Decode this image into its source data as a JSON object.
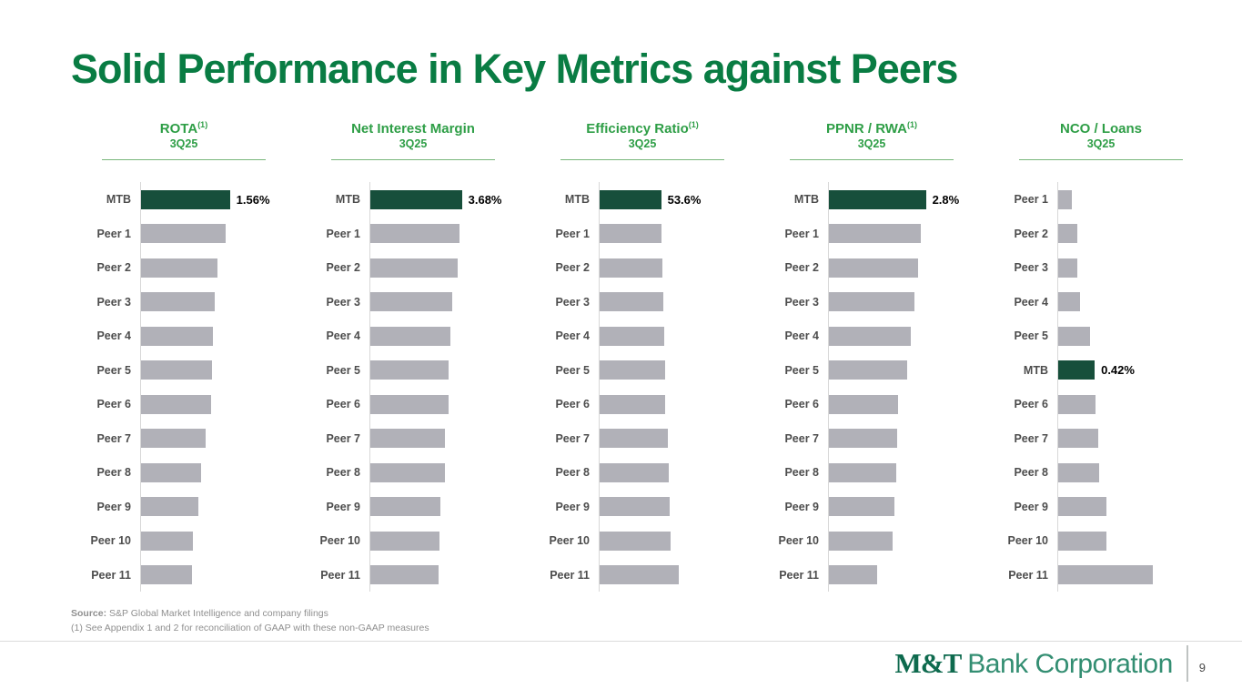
{
  "title": "Solid Performance in Key Metrics against Peers",
  "footnotes": {
    "source_label": "Source:",
    "source_text": "S&P Global Market Intelligence and company filings",
    "gaap_note": "(1) See Appendix 1 and 2 for reconciliation of GAAP with these non-GAAP measures"
  },
  "footer": {
    "logo_bold": "M&T",
    "logo_text": "Bank Corporation",
    "page_number": "9"
  },
  "colors": {
    "title_green": "#097C43",
    "header_green": "#2E9E46",
    "mtb_bar_green": "#174F3B",
    "peer_bar_gray": "#B1B1B8"
  },
  "chart_data": [
    {
      "type": "bar",
      "orientation": "horizontal",
      "title": "ROTA",
      "title_note": "(1)",
      "subtitle": "3Q25",
      "unit": "%",
      "xlim": [
        0,
        2.7
      ],
      "grid": false,
      "legend": false,
      "bars": [
        {
          "label": "MTB",
          "value": 1.56,
          "value_label": "1.56%",
          "highlight": true
        },
        {
          "label": "Peer 1",
          "value": 1.48
        },
        {
          "label": "Peer 2",
          "value": 1.34
        },
        {
          "label": "Peer 3",
          "value": 1.29
        },
        {
          "label": "Peer 4",
          "value": 1.26
        },
        {
          "label": "Peer 5",
          "value": 1.25
        },
        {
          "label": "Peer 6",
          "value": 1.23
        },
        {
          "label": "Peer 7",
          "value": 1.14
        },
        {
          "label": "Peer 8",
          "value": 1.05
        },
        {
          "label": "Peer 9",
          "value": 1.0
        },
        {
          "label": "Peer 10",
          "value": 0.91
        },
        {
          "label": "Peer 11",
          "value": 0.89
        }
      ]
    },
    {
      "type": "bar",
      "orientation": "horizontal",
      "title": "Net Interest Margin",
      "title_note": "",
      "subtitle": "3Q25",
      "unit": "%",
      "xlim": [
        0,
        6.18
      ],
      "grid": false,
      "legend": false,
      "bars": [
        {
          "label": "MTB",
          "value": 3.68,
          "value_label": "3.68%",
          "highlight": true
        },
        {
          "label": "Peer 1",
          "value": 3.57
        },
        {
          "label": "Peer 2",
          "value": 3.5
        },
        {
          "label": "Peer 3",
          "value": 3.29
        },
        {
          "label": "Peer 4",
          "value": 3.21
        },
        {
          "label": "Peer 5",
          "value": 3.14
        },
        {
          "label": "Peer 6",
          "value": 3.14
        },
        {
          "label": "Peer 7",
          "value": 3.0
        },
        {
          "label": "Peer 8",
          "value": 3.0
        },
        {
          "label": "Peer 9",
          "value": 2.82
        },
        {
          "label": "Peer 10",
          "value": 2.79
        },
        {
          "label": "Peer 11",
          "value": 2.75
        }
      ]
    },
    {
      "type": "bar",
      "orientation": "horizontal",
      "title": "Efficiency Ratio",
      "title_note": "(1)",
      "subtitle": "3Q25",
      "unit": "%",
      "xlim": [
        0,
        134
      ],
      "grid": false,
      "legend": false,
      "bars": [
        {
          "label": "MTB",
          "value": 53.6,
          "value_label": "53.6%",
          "highlight": true
        },
        {
          "label": "Peer 1",
          "value": 53.9
        },
        {
          "label": "Peer 2",
          "value": 54.4
        },
        {
          "label": "Peer 3",
          "value": 55.7
        },
        {
          "label": "Peer 4",
          "value": 56.0
        },
        {
          "label": "Peer 5",
          "value": 56.7
        },
        {
          "label": "Peer 6",
          "value": 56.9
        },
        {
          "label": "Peer 7",
          "value": 59.8
        },
        {
          "label": "Peer 8",
          "value": 60.3
        },
        {
          "label": "Peer 9",
          "value": 60.9
        },
        {
          "label": "Peer 10",
          "value": 61.9
        },
        {
          "label": "Peer 11",
          "value": 69.1
        }
      ]
    },
    {
      "type": "bar",
      "orientation": "horizontal",
      "title": "PPNR / RWA",
      "title_note": "(1)",
      "subtitle": "3Q25",
      "unit": "%",
      "xlim": [
        0,
        4.44
      ],
      "grid": false,
      "legend": false,
      "bars": [
        {
          "label": "MTB",
          "value": 2.8,
          "value_label": "2.8%",
          "highlight": true
        },
        {
          "label": "Peer 1",
          "value": 2.65
        },
        {
          "label": "Peer 2",
          "value": 2.57
        },
        {
          "label": "Peer 3",
          "value": 2.47
        },
        {
          "label": "Peer 4",
          "value": 2.37
        },
        {
          "label": "Peer 5",
          "value": 2.26
        },
        {
          "label": "Peer 6",
          "value": 2.0
        },
        {
          "label": "Peer 7",
          "value": 1.98
        },
        {
          "label": "Peer 8",
          "value": 1.95
        },
        {
          "label": "Peer 9",
          "value": 1.88
        },
        {
          "label": "Peer 10",
          "value": 1.85
        },
        {
          "label": "Peer 11",
          "value": 1.39
        }
      ]
    },
    {
      "type": "bar",
      "orientation": "horizontal",
      "title": "NCO / Loans",
      "title_note": "",
      "subtitle": "3Q25",
      "unit": "%",
      "xlim": [
        0,
        1.77
      ],
      "grid": false,
      "legend": false,
      "bars": [
        {
          "label": "Peer 1",
          "value": 0.16
        },
        {
          "label": "Peer 2",
          "value": 0.22
        },
        {
          "label": "Peer 3",
          "value": 0.22
        },
        {
          "label": "Peer 4",
          "value": 0.25
        },
        {
          "label": "Peer 5",
          "value": 0.37
        },
        {
          "label": "MTB",
          "value": 0.42,
          "value_label": "0.42%",
          "highlight": true
        },
        {
          "label": "Peer 6",
          "value": 0.43
        },
        {
          "label": "Peer 7",
          "value": 0.46
        },
        {
          "label": "Peer 8",
          "value": 0.47
        },
        {
          "label": "Peer 9",
          "value": 0.55
        },
        {
          "label": "Peer 10",
          "value": 0.56
        },
        {
          "label": "Peer 11",
          "value": 1.09
        }
      ]
    }
  ]
}
